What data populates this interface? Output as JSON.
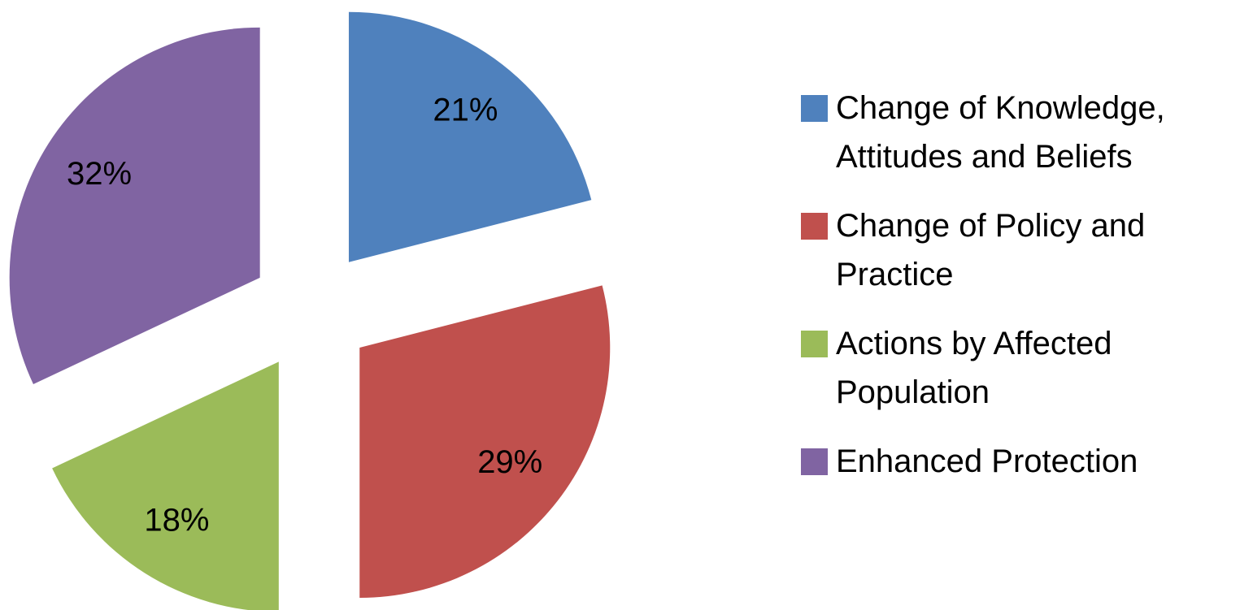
{
  "chart_data": {
    "type": "pie",
    "categories": [
      "Change of Knowledge, Attitudes and Beliefs",
      "Change of Policy and Practice",
      "Actions by Affected Population",
      "Enhanced Protection"
    ],
    "values": [
      21,
      29,
      18,
      32
    ],
    "value_labels": [
      "21%",
      "29%",
      "18%",
      "32%"
    ],
    "colors": [
      "#4f81bd",
      "#c0504d",
      "#9bbb59",
      "#8064a2"
    ],
    "legend": "right"
  }
}
